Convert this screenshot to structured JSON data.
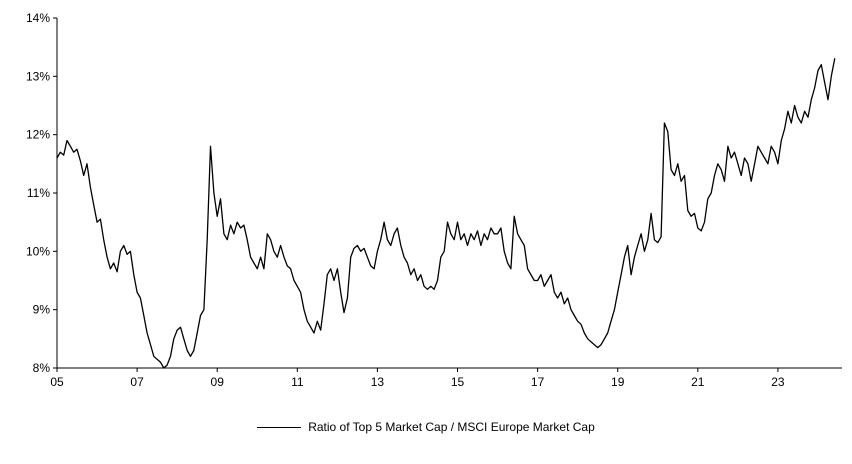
{
  "chart_data": {
    "type": "line",
    "title": "",
    "xlabel": "",
    "ylabel": "",
    "legend_label": "Ratio of Top 5 Market Cap / MSCI Europe Market Cap",
    "legend_position": "bottom-center",
    "grid": false,
    "background": "#ffffff",
    "line_color": "#000000",
    "ylim": [
      8,
      14
    ],
    "xlim": [
      2005,
      2024.6
    ],
    "y_ticks": [
      {
        "value": 8,
        "label": "8%"
      },
      {
        "value": 9,
        "label": "9%"
      },
      {
        "value": 10,
        "label": "10%"
      },
      {
        "value": 11,
        "label": "11%"
      },
      {
        "value": 12,
        "label": "12%"
      },
      {
        "value": 13,
        "label": "13%"
      },
      {
        "value": 14,
        "label": "14%"
      }
    ],
    "x_ticks": [
      {
        "value": 2005,
        "label": "05"
      },
      {
        "value": 2007,
        "label": "07"
      },
      {
        "value": 2009,
        "label": "09"
      },
      {
        "value": 2011,
        "label": "11"
      },
      {
        "value": 2013,
        "label": "13"
      },
      {
        "value": 2015,
        "label": "15"
      },
      {
        "value": 2017,
        "label": "17"
      },
      {
        "value": 2019,
        "label": "19"
      },
      {
        "value": 2021,
        "label": "21"
      },
      {
        "value": 2023,
        "label": "23"
      }
    ],
    "series": [
      {
        "name": "Ratio of Top 5 Market Cap / MSCI Europe Market Cap",
        "start_year": 2005,
        "points_per_year": 12,
        "unit": "%",
        "values": [
          11.6,
          11.7,
          11.65,
          11.9,
          11.8,
          11.7,
          11.75,
          11.55,
          11.3,
          11.5,
          11.1,
          10.8,
          10.5,
          10.55,
          10.2,
          9.9,
          9.7,
          9.8,
          9.65,
          10.0,
          10.1,
          9.95,
          10.0,
          9.6,
          9.3,
          9.2,
          8.9,
          8.6,
          8.4,
          8.2,
          8.15,
          8.1,
          8.0,
          8.05,
          8.2,
          8.5,
          8.65,
          8.7,
          8.5,
          8.3,
          8.2,
          8.3,
          8.6,
          8.9,
          9.0,
          10.2,
          11.8,
          11.0,
          10.6,
          10.9,
          10.3,
          10.2,
          10.45,
          10.3,
          10.5,
          10.4,
          10.45,
          10.2,
          9.9,
          9.8,
          9.7,
          9.9,
          9.7,
          10.3,
          10.2,
          10.0,
          9.9,
          10.1,
          9.9,
          9.75,
          9.7,
          9.5,
          9.4,
          9.3,
          9.0,
          8.8,
          8.7,
          8.6,
          8.8,
          8.65,
          9.1,
          9.6,
          9.7,
          9.5,
          9.7,
          9.3,
          8.95,
          9.2,
          9.9,
          10.05,
          10.1,
          10.0,
          10.05,
          9.9,
          9.75,
          9.7,
          10.0,
          10.2,
          10.5,
          10.2,
          10.1,
          10.3,
          10.4,
          10.1,
          9.9,
          9.8,
          9.6,
          9.7,
          9.5,
          9.6,
          9.4,
          9.35,
          9.4,
          9.35,
          9.5,
          9.9,
          10.0,
          10.5,
          10.3,
          10.2,
          10.5,
          10.2,
          10.3,
          10.1,
          10.3,
          10.2,
          10.35,
          10.1,
          10.3,
          10.2,
          10.4,
          10.3,
          10.3,
          10.4,
          10.0,
          9.8,
          9.7,
          10.6,
          10.3,
          10.2,
          10.1,
          9.7,
          9.6,
          9.5,
          9.5,
          9.6,
          9.4,
          9.5,
          9.6,
          9.3,
          9.2,
          9.3,
          9.1,
          9.2,
          9.0,
          8.9,
          8.8,
          8.75,
          8.6,
          8.5,
          8.45,
          8.4,
          8.35,
          8.4,
          8.5,
          8.6,
          8.8,
          9.0,
          9.3,
          9.6,
          9.9,
          10.1,
          9.6,
          9.9,
          10.1,
          10.3,
          10.0,
          10.2,
          10.65,
          10.2,
          10.15,
          10.25,
          12.2,
          12.05,
          11.4,
          11.3,
          11.5,
          11.2,
          11.3,
          10.7,
          10.6,
          10.65,
          10.4,
          10.35,
          10.5,
          10.9,
          11.0,
          11.3,
          11.5,
          11.4,
          11.2,
          11.8,
          11.6,
          11.7,
          11.5,
          11.3,
          11.6,
          11.5,
          11.2,
          11.5,
          11.8,
          11.7,
          11.6,
          11.5,
          11.8,
          11.7,
          11.5,
          11.9,
          12.1,
          12.4,
          12.2,
          12.5,
          12.3,
          12.2,
          12.4,
          12.3,
          12.6,
          12.8,
          13.1,
          13.2,
          12.9,
          12.6,
          13.0,
          13.3
        ]
      }
    ]
  }
}
